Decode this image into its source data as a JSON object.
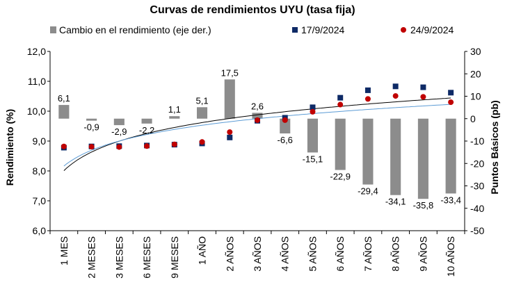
{
  "chart_data": {
    "type": "bar+scatter",
    "title": "Curvas de rendimientos UYU (tasa fija)",
    "ylabel": "Rendimiento (%)",
    "y2label": "Puntos Básicos (pb)",
    "ylim": [
      6.0,
      12.0
    ],
    "y2lim": [
      -50,
      30
    ],
    "yticks": [
      "6,0",
      "7,0",
      "8,0",
      "9,0",
      "10,0",
      "11,0",
      "12,0"
    ],
    "y2ticks": [
      "-50",
      "-40",
      "-30",
      "-20",
      "-10",
      "0",
      "10",
      "20",
      "30"
    ],
    "categories": [
      "1 MES",
      "2 MESES",
      "3 MESES",
      "6 MESES",
      "9 MESES",
      "1 AÑO",
      "2 AÑOS",
      "3 AÑOS",
      "4 AÑOS",
      "5 AÑOS",
      "6 AÑOS",
      "7 AÑOS",
      "8 AÑOS",
      "9 AÑOS",
      "10 AÑOS"
    ],
    "legend": {
      "bars": "Cambio en el rendimiento (eje der.)",
      "series1": "17/9/2024",
      "series2": "24/9/2024",
      "placement": "top"
    },
    "bars": {
      "name": "Cambio en el rendimiento (eje der.)",
      "axis": "right",
      "color": "#8c8c8c",
      "values": [
        6.1,
        -0.9,
        -2.9,
        -2.2,
        1.1,
        5.1,
        17.5,
        2.6,
        -6.6,
        -15.1,
        -22.9,
        -29.4,
        -34.1,
        -35.8,
        -33.4
      ],
      "labels": [
        "6,1",
        "-0,9",
        "-2,9",
        "-2,2",
        "1,1",
        "5,1",
        "17,5",
        "2,6",
        "-6,6",
        "-15,1",
        "-22,9",
        "-29,4",
        "-34,1",
        "-35,8",
        "-33,4"
      ]
    },
    "series": [
      {
        "name": "17/9/2024",
        "axis": "left",
        "marker": "square",
        "color": "#0e2a66",
        "values": [
          8.78,
          8.82,
          8.83,
          8.85,
          8.88,
          8.92,
          9.12,
          9.68,
          9.78,
          10.13,
          10.45,
          10.7,
          10.83,
          10.8,
          10.62
        ]
      },
      {
        "name": "24/9/2024",
        "axis": "left",
        "marker": "circle",
        "color": "#c00000",
        "values": [
          8.82,
          8.81,
          8.8,
          8.83,
          8.89,
          8.97,
          9.3,
          9.7,
          9.7,
          9.98,
          10.22,
          10.41,
          10.51,
          10.48,
          10.3
        ]
      }
    ],
    "trendlines": [
      {
        "series": "17/9/2024",
        "color": "#000000",
        "type": "log"
      },
      {
        "series": "24/9/2024",
        "color": "#5b9bd5",
        "type": "log"
      }
    ],
    "grid": false
  }
}
